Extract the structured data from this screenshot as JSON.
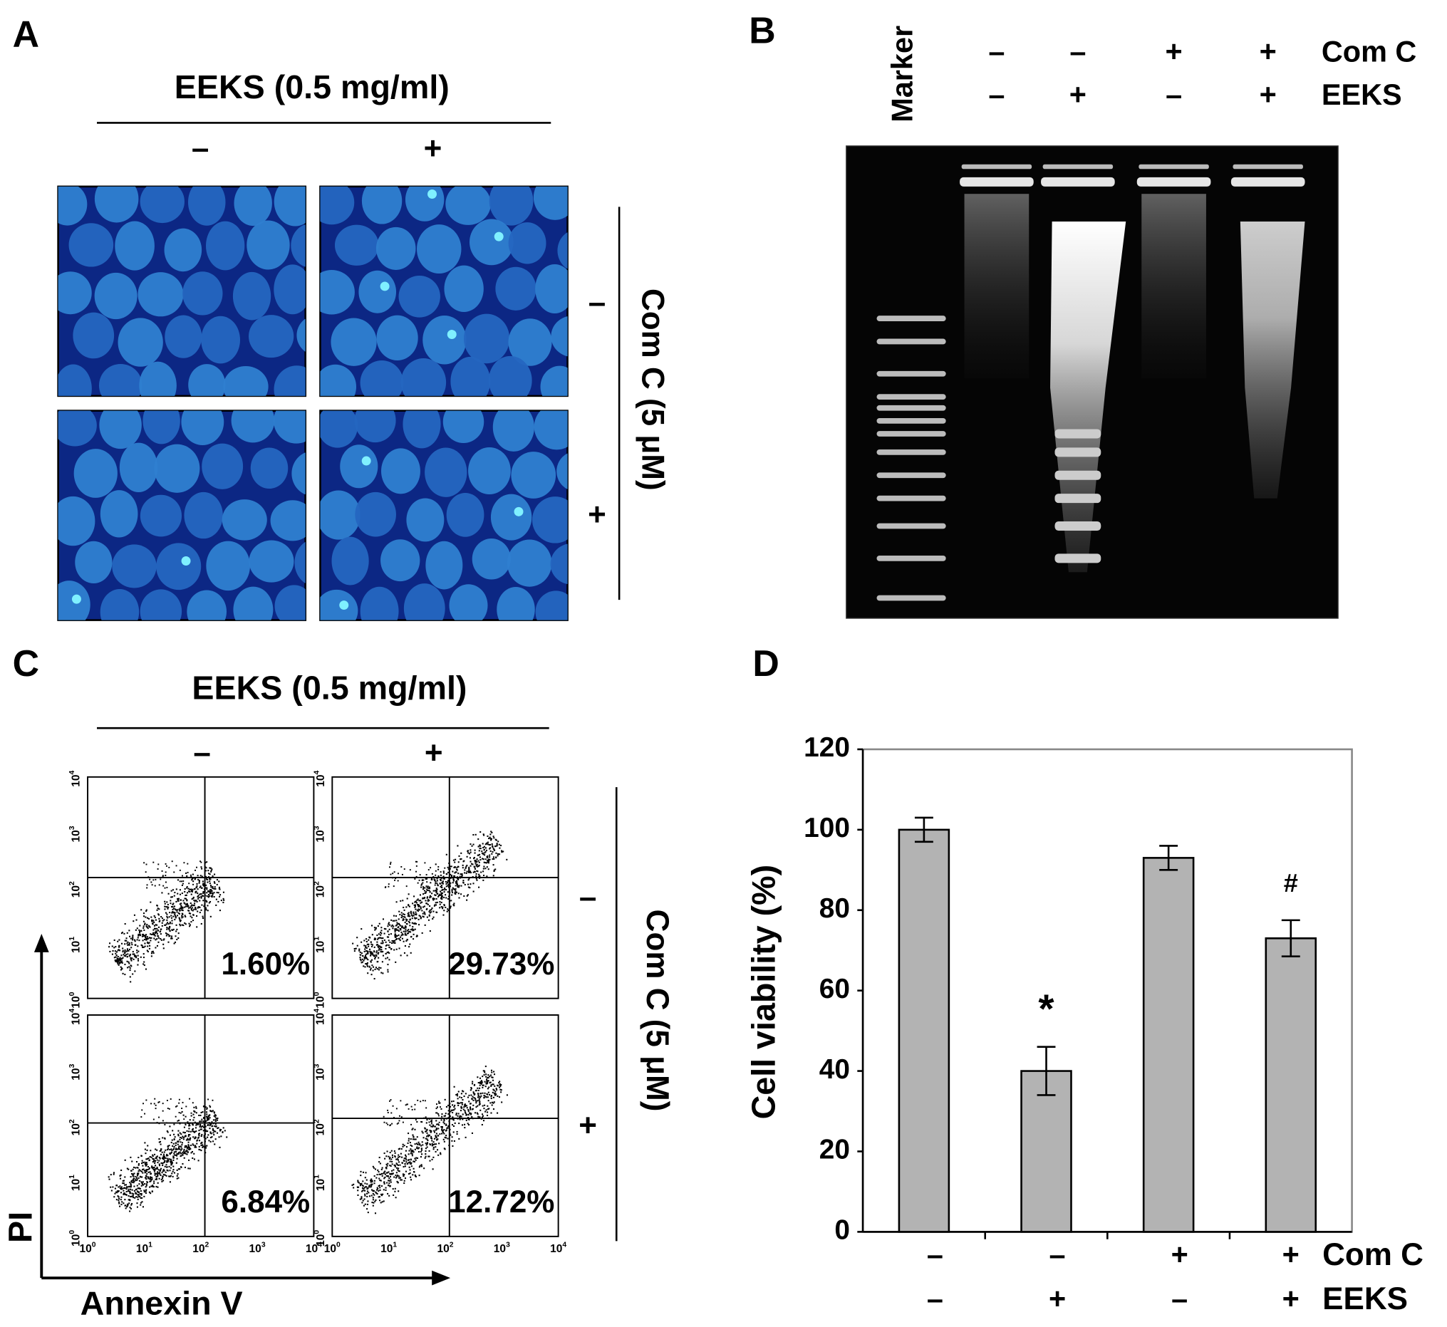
{
  "panels": {
    "A": {
      "label": "A",
      "treatment": "EEKS (0.5 mg/ml)",
      "columns": [
        "–",
        "+"
      ],
      "side_label": "Com C (5 μM)",
      "rows": [
        "–",
        "+"
      ]
    },
    "B": {
      "label": "B",
      "marker": "Marker",
      "rows": [
        {
          "name": "Com C",
          "lanes": [
            "–",
            "–",
            "+",
            "+"
          ]
        },
        {
          "name": "EEKS",
          "lanes": [
            "–",
            "+",
            "–",
            "+"
          ]
        }
      ]
    },
    "C": {
      "label": "C",
      "treatment": "EEKS (0.5 mg/ml)",
      "columns": [
        "–",
        "+"
      ],
      "side_label": "Com C (5 μM)",
      "rows": [
        "–",
        "+"
      ],
      "x_label": "Annexin V",
      "y_label": "PI",
      "percentages": [
        "1.60%",
        "29.73%",
        "6.84%",
        "12.72%"
      ],
      "axis_ticks": [
        {
          "base": "10",
          "exp": "0"
        },
        {
          "base": "10",
          "exp": "1"
        },
        {
          "base": "10",
          "exp": "2"
        },
        {
          "base": "10",
          "exp": "3"
        },
        {
          "base": "10",
          "exp": "4"
        }
      ]
    }
  },
  "chart_data": {
    "type": "bar",
    "label": "D",
    "ylabel": "Cell viability (%)",
    "values": [
      100,
      40,
      93,
      73
    ],
    "errors": [
      3,
      6,
      3,
      4.5
    ],
    "value_annotations": [
      null,
      "*",
      null,
      "#"
    ],
    "conditions": [
      {
        "name": "Com C",
        "values": [
          "–",
          "–",
          "+",
          "+"
        ]
      },
      {
        "name": "EEKS",
        "values": [
          "–",
          "+",
          "–",
          "+"
        ]
      }
    ],
    "color": "#b3b3b3",
    "ylim": [
      0,
      120
    ],
    "yticks": [
      0,
      20,
      40,
      60,
      80,
      100,
      120
    ]
  }
}
